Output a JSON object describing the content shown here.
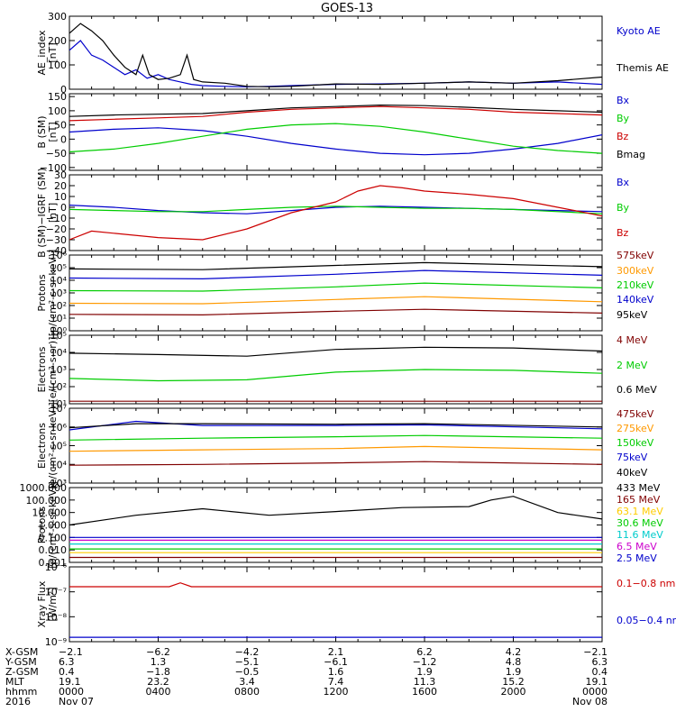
{
  "title": "GOES-13",
  "chart_data": [
    {
      "type": "line",
      "id": "ae",
      "ylabel": [
        "AE_index",
        "[nT]"
      ],
      "ylim": [
        0,
        300
      ],
      "log": false,
      "ticks": [
        0,
        100,
        200,
        300
      ],
      "tick_labels": [
        "0",
        "100",
        "200",
        "300"
      ],
      "series": [
        {
          "name": "Kyoto AE",
          "color": "#0000cc",
          "x": [
            0,
            0.5,
            1,
            1.5,
            2,
            2.5,
            3,
            3.5,
            4,
            4.5,
            5,
            5.5,
            6,
            7,
            8,
            9,
            10,
            12,
            14,
            16,
            18,
            20,
            22,
            24
          ],
          "y": [
            160,
            200,
            140,
            120,
            90,
            60,
            80,
            45,
            60,
            40,
            30,
            20,
            15,
            12,
            10,
            12,
            15,
            20,
            22,
            25,
            30,
            25,
            30,
            20
          ]
        },
        {
          "name": "Themis AE",
          "color": "#000000",
          "x": [
            0,
            0.5,
            1,
            1.5,
            2,
            2.5,
            3,
            3.3,
            3.6,
            4,
            4.5,
            5,
            5.3,
            5.6,
            6,
            7,
            8,
            9,
            10,
            12,
            14,
            16,
            18,
            20,
            22,
            24
          ],
          "y": [
            230,
            270,
            240,
            200,
            140,
            90,
            60,
            140,
            60,
            40,
            45,
            60,
            140,
            40,
            30,
            25,
            12,
            10,
            12,
            22,
            20,
            25,
            30,
            25,
            35,
            50
          ]
        }
      ]
    },
    {
      "type": "line",
      "id": "bsm",
      "ylabel": [
        "B (SM)",
        "[nT]"
      ],
      "ylim": [
        -110,
        160
      ],
      "log": false,
      "ticks": [
        -100,
        -50,
        0,
        50,
        100,
        150
      ],
      "tick_labels": [
        "−100",
        "−50",
        "0",
        "50",
        "100",
        "150"
      ],
      "series": [
        {
          "name": "Bx",
          "color": "#0000cc",
          "x": [
            0,
            2,
            4,
            6,
            8,
            10,
            12,
            14,
            16,
            18,
            20,
            22,
            24
          ],
          "y": [
            25,
            35,
            40,
            30,
            10,
            -15,
            -35,
            -50,
            -55,
            -50,
            -35,
            -15,
            15
          ]
        },
        {
          "name": "By",
          "color": "#00cc00",
          "x": [
            0,
            2,
            4,
            6,
            8,
            10,
            12,
            14,
            16,
            18,
            20,
            22,
            24
          ],
          "y": [
            -45,
            -35,
            -15,
            10,
            35,
            50,
            55,
            45,
            25,
            0,
            -25,
            -40,
            -50
          ]
        },
        {
          "name": "Bz",
          "color": "#cc0000",
          "x": [
            0,
            2,
            4,
            6,
            8,
            10,
            12,
            14,
            16,
            18,
            20,
            22,
            24
          ],
          "y": [
            65,
            70,
            75,
            80,
            95,
            105,
            110,
            115,
            110,
            105,
            95,
            90,
            85
          ]
        },
        {
          "name": "Bmag",
          "color": "#000000",
          "x": [
            0,
            2,
            4,
            6,
            8,
            10,
            12,
            14,
            16,
            18,
            20,
            22,
            24
          ],
          "y": [
            80,
            85,
            88,
            90,
            100,
            110,
            115,
            120,
            118,
            112,
            105,
            100,
            95
          ]
        }
      ]
    },
    {
      "type": "line",
      "id": "digrf",
      "ylabel": [
        "B (SM)−IGRF (SM)",
        "[nT]"
      ],
      "ylim": [
        -40,
        30
      ],
      "log": false,
      "ticks": [
        -40,
        -30,
        -20,
        -10,
        0,
        10,
        20,
        30
      ],
      "tick_labels": [
        "−40",
        "−30",
        "−20",
        "−10",
        "0",
        "10",
        "20",
        "30"
      ],
      "series": [
        {
          "name": "Bx",
          "color": "#0000cc",
          "x": [
            0,
            2,
            4,
            6,
            8,
            10,
            12,
            14,
            16,
            18,
            20,
            22,
            24
          ],
          "y": [
            2,
            0,
            -3,
            -5,
            -6,
            -3,
            0,
            1,
            0,
            -1,
            -2,
            -3,
            -4
          ]
        },
        {
          "name": "By",
          "color": "#00cc00",
          "x": [
            0,
            2,
            4,
            6,
            8,
            10,
            12,
            14,
            16,
            18,
            20,
            22,
            24
          ],
          "y": [
            -2,
            -3,
            -4,
            -4,
            -2,
            0,
            1,
            0,
            -1,
            -1,
            -2,
            -4,
            -6
          ]
        },
        {
          "name": "Bz",
          "color": "#cc0000",
          "x": [
            0,
            1,
            2,
            4,
            6,
            8,
            10,
            12,
            13,
            14,
            15,
            16,
            18,
            20,
            22,
            24
          ],
          "y": [
            -30,
            -22,
            -24,
            -28,
            -30,
            -20,
            -5,
            5,
            15,
            20,
            18,
            15,
            12,
            8,
            0,
            -8
          ]
        }
      ]
    },
    {
      "type": "line",
      "id": "protons",
      "ylabel": [
        "Protons",
        "[p/(cm²-s-sr-keV)]"
      ],
      "ylim": [
        1,
        1000000
      ],
      "log": true,
      "ticks": [
        1,
        10,
        100,
        1000,
        10000,
        100000,
        1000000
      ],
      "tick_labels": [
        "10⁰",
        "10¹",
        "10²",
        "10³",
        "10⁴",
        "10⁵",
        "10⁶"
      ],
      "series": [
        {
          "name": "575keV",
          "color": "#800000",
          "x": [
            0,
            6,
            12,
            16,
            24
          ],
          "y": [
            20,
            18,
            35,
            50,
            25
          ]
        },
        {
          "name": "300keV",
          "color": "#ff9900",
          "x": [
            0,
            6,
            12,
            16,
            24
          ],
          "y": [
            150,
            140,
            300,
            500,
            200
          ]
        },
        {
          "name": "210keV",
          "color": "#00cc00",
          "x": [
            0,
            6,
            12,
            16,
            24
          ],
          "y": [
            1500,
            1400,
            3000,
            6000,
            2500
          ]
        },
        {
          "name": "140keV",
          "color": "#0000cc",
          "x": [
            0,
            6,
            12,
            16,
            24
          ],
          "y": [
            15000,
            13000,
            30000,
            60000,
            25000
          ]
        },
        {
          "name": "95keV",
          "color": "#000000",
          "x": [
            0,
            6,
            12,
            16,
            24
          ],
          "y": [
            80000,
            70000,
            150000,
            250000,
            120000
          ]
        }
      ]
    },
    {
      "type": "line",
      "id": "electrons_mev",
      "ylabel": [
        "Electrons",
        "[e/(cm²-s-sr)]"
      ],
      "ylim": [
        10,
        100000
      ],
      "log": true,
      "ticks": [
        10,
        100,
        1000,
        10000,
        100000
      ],
      "tick_labels": [
        "10¹",
        "10²",
        "10³",
        "10⁴",
        "10⁵"
      ],
      "series": [
        {
          "name": "4 MeV",
          "color": "#800000",
          "x": [
            0,
            24
          ],
          "y": [
            14,
            14
          ]
        },
        {
          "name": "2 MeV",
          "color": "#00cc00",
          "x": [
            0,
            4,
            8,
            12,
            16,
            20,
            24
          ],
          "y": [
            300,
            220,
            250,
            700,
            1000,
            900,
            600
          ]
        },
        {
          "name": "0.6 MeV",
          "color": "#000000",
          "x": [
            0,
            4,
            8,
            12,
            16,
            20,
            24
          ],
          "y": [
            9000,
            7500,
            6000,
            15000,
            20000,
            18000,
            12000
          ]
        }
      ]
    },
    {
      "type": "line",
      "id": "electrons_kev",
      "ylabel": [
        "Electrons",
        "[e/(cm²-s-sr-keV)]"
      ],
      "ylim": [
        1000,
        10000000
      ],
      "log": true,
      "ticks": [
        1000,
        10000,
        100000,
        1000000,
        10000000
      ],
      "tick_labels": [
        "10³",
        "10⁴",
        "10⁵",
        "10⁶",
        "10⁷"
      ],
      "series": [
        {
          "name": "475keV",
          "color": "#800000",
          "x": [
            0,
            6,
            12,
            16,
            24
          ],
          "y": [
            9000,
            10000,
            12000,
            14000,
            10000
          ]
        },
        {
          "name": "275keV",
          "color": "#ff9900",
          "x": [
            0,
            6,
            12,
            16,
            24
          ],
          "y": [
            50000,
            60000,
            70000,
            90000,
            60000
          ]
        },
        {
          "name": "150keV",
          "color": "#00cc00",
          "x": [
            0,
            6,
            12,
            16,
            24
          ],
          "y": [
            200000,
            250000,
            300000,
            350000,
            250000
          ]
        },
        {
          "name": "75keV",
          "color": "#0000cc",
          "x": [
            0,
            3,
            6,
            12,
            16,
            24
          ],
          "y": [
            700000,
            2000000,
            1200000,
            1200000,
            1300000,
            800000
          ]
        },
        {
          "name": "40keV",
          "color": "#000000",
          "x": [
            0,
            3,
            6,
            12,
            16,
            24
          ],
          "y": [
            900000,
            1500000,
            1500000,
            1400000,
            1500000,
            1000000
          ]
        }
      ]
    },
    {
      "type": "line",
      "id": "protons_mev",
      "ylabel": [
        "Protons",
        "[p/(cm²-s-sr-keV)]"
      ],
      "ylim": [
        0.001,
        1000
      ],
      "log": true,
      "ticks": [
        0.001,
        0.01,
        0.1,
        1,
        10,
        100,
        1000
      ],
      "tick_labels": [
        "0.001",
        "0.010",
        "0.100",
        "1.000",
        "10.000",
        "100.000",
        "1000.000"
      ],
      "series": [
        {
          "name": "433 MeV",
          "color": "#000000",
          "x": [
            0,
            3,
            6,
            9,
            12,
            15,
            18,
            19,
            20,
            22,
            24
          ],
          "y": [
            1,
            6,
            20,
            6,
            12,
            25,
            30,
            100,
            200,
            10,
            3
          ]
        },
        {
          "name": "165 MeV",
          "color": "#800000",
          "x": [
            0,
            24
          ],
          "y": [
            0.0025,
            0.0025
          ]
        },
        {
          "name": "63.1 MeV",
          "color": "#ffcc00",
          "x": [
            0,
            24
          ],
          "y": [
            0.006,
            0.006
          ]
        },
        {
          "name": "30.6 MeV",
          "color": "#00cc00",
          "x": [
            0,
            24
          ],
          "y": [
            0.012,
            0.012
          ]
        },
        {
          "name": "11.6 MeV",
          "color": "#00cccc",
          "x": [
            0,
            24
          ],
          "y": [
            0.03,
            0.03
          ]
        },
        {
          "name": "6.5 MeV",
          "color": "#cc00cc",
          "x": [
            0,
            24
          ],
          "y": [
            0.06,
            0.06
          ]
        },
        {
          "name": "2.5 MeV",
          "color": "#0000cc",
          "x": [
            0,
            24
          ],
          "y": [
            0.1,
            0.1
          ]
        }
      ]
    },
    {
      "type": "line",
      "id": "xray",
      "ylabel": [
        "Xray Flux",
        "[W/m²]"
      ],
      "ylim": [
        1e-09,
        1e-06
      ],
      "log": true,
      "ticks": [
        1e-09,
        1e-08,
        1e-07,
        1e-06
      ],
      "tick_labels": [
        "10⁻⁹",
        "10⁻⁸",
        "10⁻⁷",
        "10⁻⁶"
      ],
      "series": [
        {
          "name": "0.1−0.8 nm",
          "color": "#cc0000",
          "x": [
            0,
            4.5,
            5,
            5.5,
            24
          ],
          "y": [
            1.6e-07,
            1.6e-07,
            2.3e-07,
            1.6e-07,
            1.6e-07
          ]
        },
        {
          "name": "0.05−0.4 nm",
          "color": "#0000cc",
          "x": [
            0,
            24
          ],
          "y": [
            1.5e-09,
            1.5e-09
          ]
        }
      ]
    }
  ],
  "x_axis": {
    "xlim": [
      0,
      24
    ],
    "rows": [
      {
        "label": "X-GSM",
        "values": [
          "−2.1",
          "−6.2",
          "−4.2",
          "2.1",
          "6.2",
          "4.2",
          "−2.1"
        ]
      },
      {
        "label": "Y-GSM",
        "values": [
          "6.3",
          "1.3",
          "−5.1",
          "−6.1",
          "−1.2",
          "4.8",
          "6.3"
        ]
      },
      {
        "label": "Z-GSM",
        "values": [
          "0.4",
          "−1.8",
          "−0.5",
          "1.6",
          "1.9",
          "1.9",
          "0.4"
        ]
      },
      {
        "label": "MLT",
        "values": [
          "19.1",
          "23.2",
          "3.4",
          "7.4",
          "11.3",
          "15.2",
          "19.1"
        ]
      },
      {
        "label": "hhmm",
        "values": [
          "0000",
          "0400",
          "0800",
          "1200",
          "1600",
          "2000",
          "0000"
        ]
      },
      {
        "label": "2016",
        "values": [
          "Nov 07",
          "",
          "",
          "",
          "",
          "",
          "Nov 08"
        ]
      }
    ]
  }
}
